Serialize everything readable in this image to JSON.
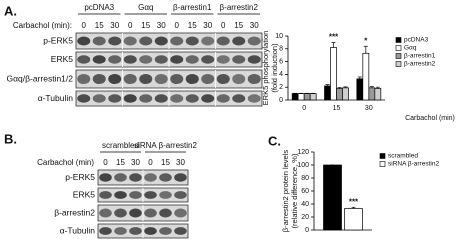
{
  "panels": {
    "A": {
      "label": "A.",
      "treatment_label": "Carbachol (min):",
      "groups": [
        "pcDNA3",
        "Gαq",
        "β-arrestin1",
        "β-arrestin2"
      ],
      "lanes": [
        "0",
        "15",
        "30",
        "0",
        "15",
        "30",
        "0",
        "15",
        "30",
        "0",
        "15",
        "30"
      ],
      "rows": [
        "p-ERK5",
        "ERK5",
        "Gαq/β-arrestin1/2",
        "α-Tubulin"
      ]
    },
    "B": {
      "label": "B.",
      "treatment_label": "Carbachol (min)",
      "groups": [
        "scrambled",
        "siRNA β-arrestin2"
      ],
      "lanes": [
        "0",
        "15",
        "30",
        "0",
        "15",
        "30"
      ],
      "rows": [
        "p-ERK5",
        "ERK5",
        "β-arrestin2",
        "α-Tubulin"
      ]
    },
    "C": {
      "label": "C."
    }
  },
  "chart_data": [
    {
      "type": "bar",
      "ylabel": "ERK5 phosphorylation (fold induction)",
      "xlabel": "Carbachol (min)",
      "categories": [
        "0",
        "15",
        "30"
      ],
      "ylim": [
        0,
        10
      ],
      "yticks": [
        0,
        2,
        4,
        6,
        8,
        10
      ],
      "series": [
        {
          "name": "pcDNA3",
          "color": "#000000",
          "values": [
            1,
            2.2,
            3.3
          ],
          "errors": [
            0.05,
            0.2,
            0.3
          ]
        },
        {
          "name": "Gαq",
          "color": "#ffffff",
          "values": [
            1,
            8.2,
            7.3
          ],
          "errors": [
            0.05,
            0.8,
            1.1
          ],
          "significance": [
            null,
            "***",
            "*"
          ]
        },
        {
          "name": "β-arrestin1",
          "color": "#9a9a9a",
          "values": [
            1,
            1.8,
            1.9
          ],
          "errors": [
            0.05,
            0.15,
            0.2
          ]
        },
        {
          "name": "β-arrestin2",
          "color": "#cfcfcf",
          "values": [
            1,
            1.9,
            1.8
          ],
          "errors": [
            0.05,
            0.15,
            0.2
          ]
        }
      ]
    },
    {
      "type": "bar",
      "ylabel": "β-arrestin2 protein levels (relative difference, %)",
      "categories": [
        null
      ],
      "ylim": [
        0,
        120
      ],
      "yticks": [
        0,
        20,
        40,
        60,
        80,
        100,
        120
      ],
      "series": [
        {
          "name": "scrambled",
          "color": "#000000",
          "values": [
            100
          ],
          "errors": [
            0
          ]
        },
        {
          "name": "siRNA β-arrestin2",
          "color": "#ffffff",
          "values": [
            33
          ],
          "errors": [
            2
          ],
          "significance": [
            "***"
          ]
        }
      ]
    }
  ]
}
